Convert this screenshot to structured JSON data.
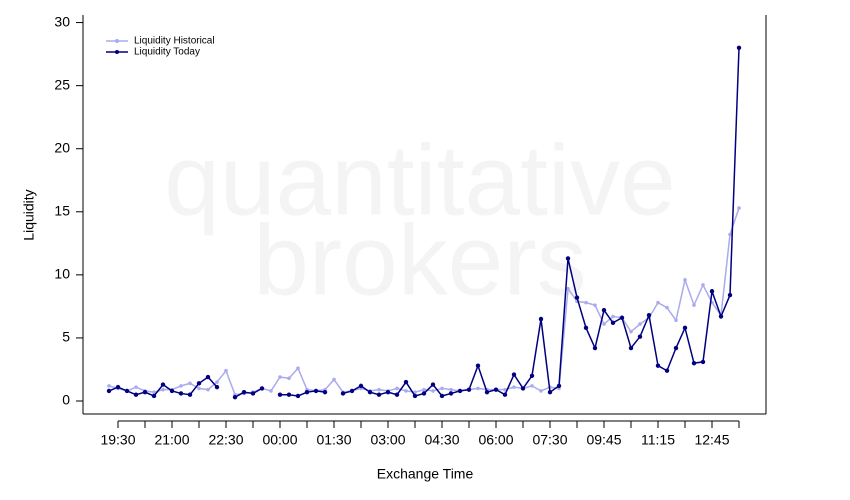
{
  "chart_data": {
    "type": "line",
    "watermark": [
      "quantitative",
      "brokers"
    ],
    "x_label": "Exchange Time",
    "y_label": "Liquidity",
    "categories": [
      null,
      "19:30",
      null,
      null,
      null,
      null,
      null,
      "21:00",
      null,
      null,
      null,
      null,
      null,
      "22:30",
      null,
      null,
      null,
      null,
      null,
      "00:00",
      null,
      null,
      null,
      null,
      null,
      "01:30",
      null,
      null,
      null,
      null,
      null,
      "03:00",
      null,
      null,
      null,
      null,
      null,
      "04:30",
      null,
      null,
      null,
      null,
      null,
      "06:00",
      null,
      null,
      null,
      null,
      null,
      "07:30",
      null,
      null,
      null,
      null,
      null,
      "09:45",
      null,
      null,
      null,
      null,
      null,
      "11:15",
      null,
      null,
      null,
      null,
      null,
      "12:45",
      null,
      null,
      null
    ],
    "series": [
      {
        "name": "Liquidity Historical",
        "color": "#aaaaee",
        "values": [
          1.2,
          1.0,
          0.8,
          1.1,
          0.8,
          0.7,
          0.9,
          0.9,
          1.2,
          1.4,
          1.0,
          0.9,
          1.5,
          2.4,
          0.5,
          0.6,
          0.7,
          1.0,
          0.8,
          1.9,
          1.8,
          2.6,
          0.9,
          0.8,
          0.9,
          1.7,
          0.7,
          0.8,
          1.0,
          0.8,
          0.9,
          0.8,
          1.0,
          0.8,
          0.7,
          0.9,
          0.8,
          1.0,
          0.9,
          0.8,
          0.9,
          1.0,
          0.9,
          0.9,
          0.9,
          1.1,
          1.0,
          1.2,
          0.8,
          1.1,
          1.0,
          8.9,
          7.9,
          7.8,
          7.6,
          6.1,
          6.7,
          6.6,
          5.5,
          6.1,
          6.6,
          7.8,
          7.4,
          6.4,
          9.6,
          7.6,
          9.2,
          7.8,
          6.8,
          13.2,
          15.3
        ]
      },
      {
        "name": "Liquidity Today",
        "color": "#000080",
        "values": [
          0.8,
          1.1,
          0.8,
          0.5,
          0.7,
          0.4,
          1.3,
          0.8,
          0.6,
          0.5,
          1.4,
          1.9,
          1.1,
          null,
          0.3,
          0.7,
          0.6,
          1.0,
          null,
          0.5,
          0.5,
          0.4,
          0.7,
          0.8,
          0.7,
          null,
          0.6,
          0.8,
          1.2,
          0.7,
          0.5,
          0.7,
          0.5,
          1.5,
          0.4,
          0.6,
          1.3,
          0.4,
          0.6,
          0.8,
          0.9,
          2.8,
          0.7,
          0.9,
          0.5,
          2.1,
          1.0,
          2.0,
          6.5,
          0.7,
          1.2,
          11.3,
          8.2,
          5.8,
          4.2,
          7.2,
          6.2,
          6.6,
          4.2,
          5.1,
          6.8,
          2.8,
          2.4,
          4.2,
          5.8,
          3.0,
          3.1,
          8.7,
          6.7,
          8.4,
          28.0
        ]
      }
    ],
    "ylim": [
      -1.03,
      30.6
    ],
    "yticks": [
      0,
      5,
      10,
      15,
      20,
      25,
      30
    ],
    "grid": false,
    "legend": "top-left"
  }
}
